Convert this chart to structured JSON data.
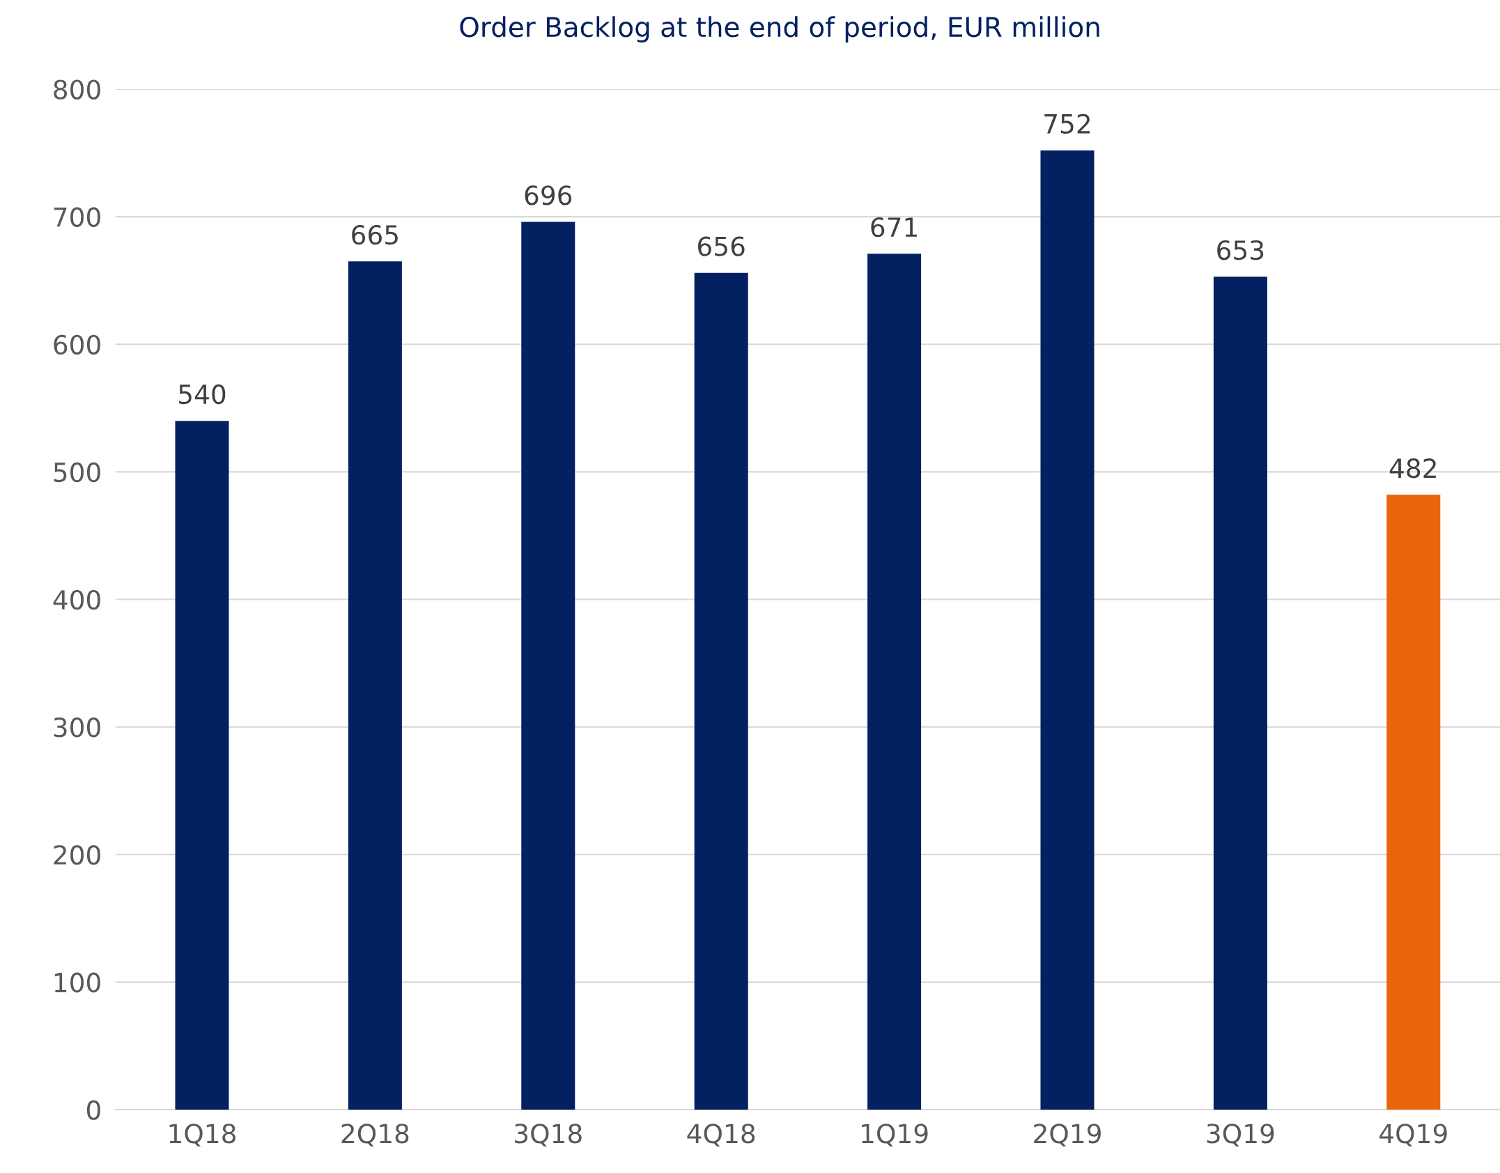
{
  "chart_data": {
    "type": "bar",
    "title": "Order Backlog at the end of period, EUR million",
    "categories": [
      "1Q18",
      "2Q18",
      "3Q18",
      "4Q18",
      "1Q19",
      "2Q19",
      "3Q19",
      "4Q19"
    ],
    "values": [
      540,
      665,
      696,
      656,
      671,
      752,
      653,
      482
    ],
    "colors": [
      "#032060",
      "#032060",
      "#032060",
      "#032060",
      "#032060",
      "#032060",
      "#032060",
      "#e8650c"
    ],
    "ylim": [
      0,
      800
    ],
    "yticks": [
      0,
      100,
      200,
      300,
      400,
      500,
      600,
      700,
      800
    ],
    "grid": "y",
    "data_labels": true,
    "legend": false
  }
}
